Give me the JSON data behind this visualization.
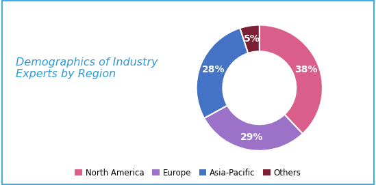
{
  "title": "Demographics of Industry\nExperts by Region",
  "title_color": "#2E9BD6",
  "title_fontsize": 11.5,
  "labels": [
    "North America",
    "Europe",
    "Asia-Pacific",
    "Others"
  ],
  "values": [
    38,
    29,
    28,
    5
  ],
  "colors": [
    "#D95F8A",
    "#9B72C8",
    "#4472C4",
    "#7B1F35"
  ],
  "pct_labels": [
    "38%",
    "29%",
    "28%",
    "5%"
  ],
  "pct_fontsize": 10,
  "legend_fontsize": 8.5,
  "background_color": "#ffffff",
  "border_color": "#3BAEE8",
  "donut_width": 0.42,
  "startangle": 90
}
